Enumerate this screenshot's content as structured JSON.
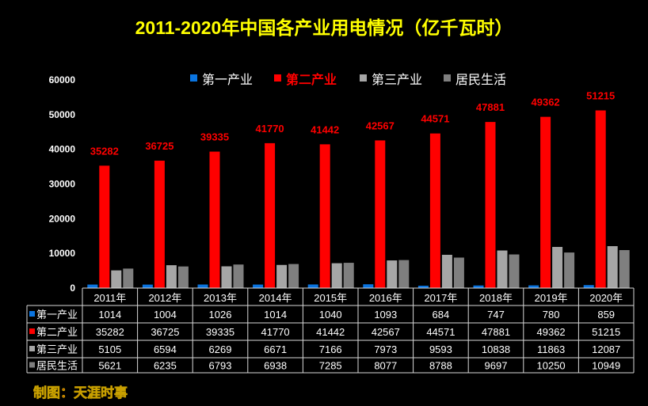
{
  "chart_data": {
    "type": "bar",
    "title": "2011-2020年中国各产业用电情况（亿千瓦时）",
    "categories": [
      "2011年",
      "2012年",
      "2013年",
      "2014年",
      "2015年",
      "2016年",
      "2017年",
      "2018年",
      "2019年",
      "2020年"
    ],
    "ylim": [
      0,
      60000
    ],
    "yticks": [
      "0",
      "10000",
      "20000",
      "30000",
      "40000",
      "50000",
      "60000"
    ],
    "legend_position": "top",
    "series": [
      {
        "name": "第一产业",
        "color": "#0a74e0",
        "values": [
          1014,
          1004,
          1026,
          1014,
          1040,
          1093,
          684,
          747,
          780,
          859
        ]
      },
      {
        "name": "第二产业",
        "color": "#ff0000",
        "values": [
          35282,
          36725,
          39335,
          41770,
          41442,
          42567,
          44571,
          47881,
          49362,
          51215
        ],
        "labels": true
      },
      {
        "name": "第三产业",
        "color": "#a6a6a6",
        "values": [
          5105,
          6594,
          6269,
          6671,
          7166,
          7973,
          9593,
          10838,
          11863,
          12087
        ]
      },
      {
        "name": "居民生活",
        "color": "#7f7f7f",
        "values": [
          5621,
          6235,
          6793,
          6938,
          7285,
          8077,
          8788,
          9697,
          10250,
          10949
        ]
      }
    ]
  },
  "footer": "制图：天涯时事"
}
